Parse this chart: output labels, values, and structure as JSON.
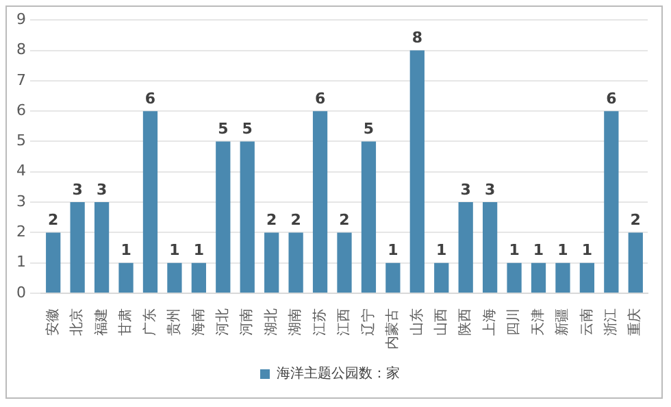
{
  "chart_data": {
    "type": "bar",
    "categories": [
      "安徽",
      "北京",
      "福建",
      "甘肃",
      "广东",
      "贵州",
      "海南",
      "河北",
      "河南",
      "湖北",
      "湖南",
      "江苏",
      "江西",
      "辽宁",
      "内蒙古",
      "山东",
      "山西",
      "陕西",
      "上海",
      "四川",
      "天津",
      "新疆",
      "云南",
      "浙江",
      "重庆"
    ],
    "series": [
      {
        "name": "海洋主题公园数：家",
        "color": "#4a89b0",
        "values": [
          2,
          3,
          3,
          1,
          6,
          1,
          1,
          5,
          5,
          2,
          2,
          6,
          2,
          5,
          1,
          8,
          1,
          3,
          3,
          1,
          1,
          1,
          1,
          6,
          2
        ]
      }
    ],
    "ylim": [
      0,
      9
    ],
    "yticks": [
      0,
      1,
      2,
      3,
      4,
      5,
      6,
      7,
      8,
      9
    ],
    "grid": "y",
    "legend": "bottom",
    "data_labels": true
  }
}
